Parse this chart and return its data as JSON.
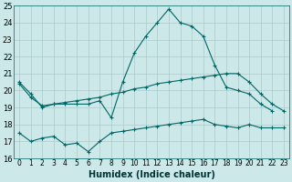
{
  "xlabel": "Humidex (Indice chaleur)",
  "bg_color": "#cce8e8",
  "grid_color": "#aacccc",
  "line_color": "#006666",
  "ylim": [
    16,
    25
  ],
  "xlim": [
    -0.5,
    23.5
  ],
  "yticks": [
    16,
    17,
    18,
    19,
    20,
    21,
    22,
    23,
    24,
    25
  ],
  "xticks": [
    0,
    1,
    2,
    3,
    4,
    5,
    6,
    7,
    8,
    9,
    10,
    11,
    12,
    13,
    14,
    15,
    16,
    17,
    18,
    19,
    20,
    21,
    22,
    23
  ],
  "curve1_x": [
    0,
    1,
    2,
    3,
    4,
    5,
    6,
    7,
    8,
    9,
    10,
    11,
    12,
    13,
    14,
    15,
    16,
    17,
    18,
    19,
    20,
    21,
    22
  ],
  "curve1_y": [
    20.5,
    19.8,
    19.0,
    19.2,
    19.2,
    19.2,
    19.2,
    19.4,
    18.4,
    20.5,
    22.2,
    23.2,
    24.0,
    24.8,
    24.0,
    23.8,
    23.2,
    21.5,
    20.2,
    20.0,
    19.8,
    19.2,
    18.8
  ],
  "curve2_x": [
    0,
    1,
    2,
    3,
    4,
    5,
    6,
    7,
    8,
    9,
    10,
    11,
    12,
    13,
    14,
    15,
    16,
    17,
    18,
    19,
    20,
    21,
    22,
    23
  ],
  "curve2_y": [
    20.4,
    19.6,
    19.1,
    19.2,
    19.3,
    19.4,
    19.5,
    19.6,
    19.8,
    19.9,
    20.1,
    20.2,
    20.4,
    20.5,
    20.6,
    20.7,
    20.8,
    20.9,
    21.0,
    21.0,
    20.5,
    19.8,
    19.2,
    18.8
  ],
  "curve3_x": [
    0,
    1,
    2,
    3,
    4,
    5,
    6,
    7,
    8,
    9,
    10,
    11,
    12,
    13,
    14,
    15,
    16,
    17,
    18,
    19,
    20,
    21,
    22,
    23
  ],
  "curve3_y": [
    17.5,
    17.0,
    17.2,
    17.3,
    16.8,
    16.9,
    16.4,
    17.0,
    17.5,
    17.6,
    17.7,
    17.8,
    17.9,
    18.0,
    18.1,
    18.2,
    18.3,
    18.0,
    17.9,
    17.8,
    18.0,
    17.8,
    17.8,
    17.8
  ],
  "tick_fontsize": 6,
  "xlabel_fontsize": 7
}
